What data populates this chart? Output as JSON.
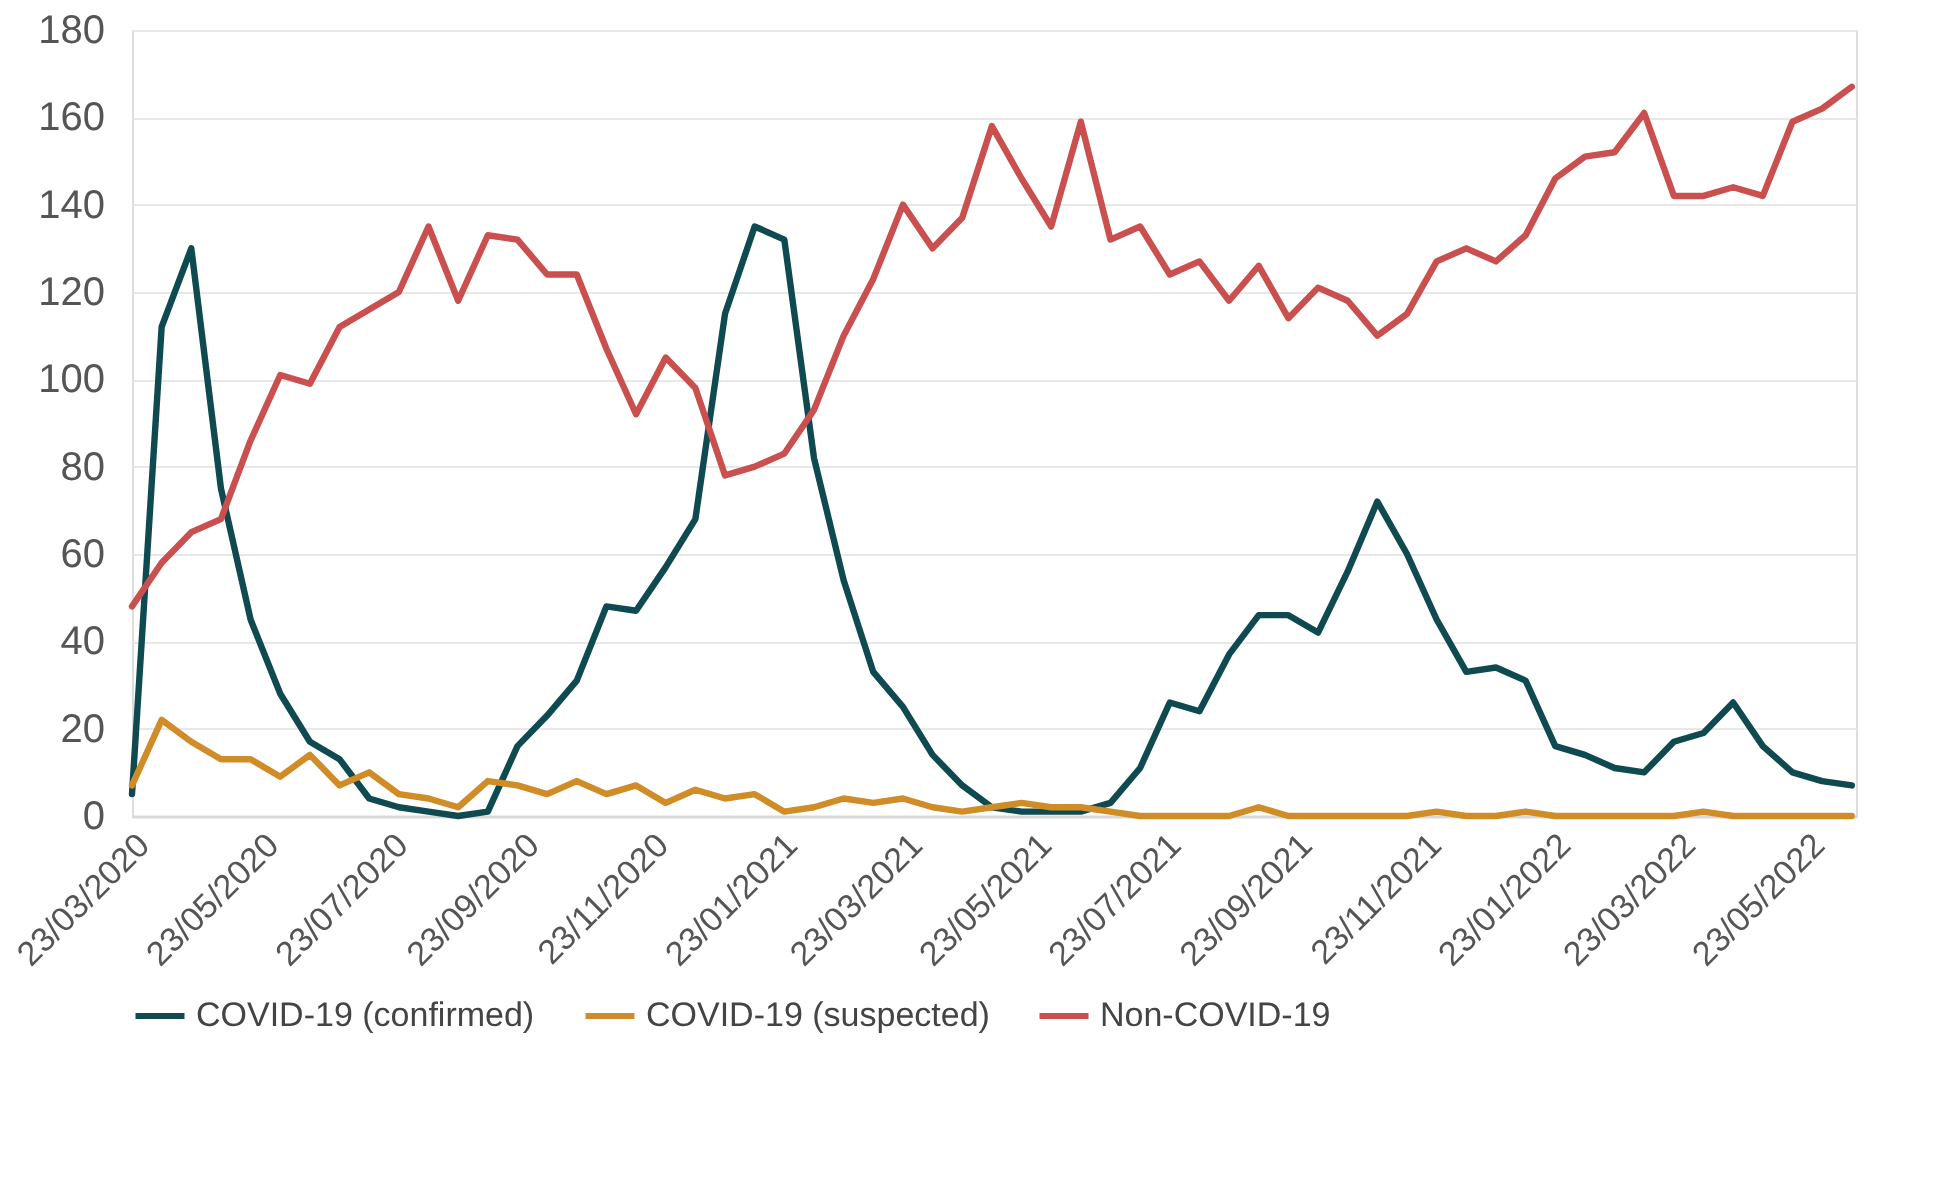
{
  "chart_data": {
    "type": "line",
    "grid": "y",
    "legend": "bottom",
    "xlim": [
      "2020-03-23",
      "2022-06-15"
    ],
    "xticks": [
      {
        "value": "2020-03-23",
        "label": "23/03/2020"
      },
      {
        "value": "2020-05-23",
        "label": "23/05/2020"
      },
      {
        "value": "2020-07-23",
        "label": "23/07/2020"
      },
      {
        "value": "2020-09-23",
        "label": "23/09/2020"
      },
      {
        "value": "2020-11-23",
        "label": "23/11/2020"
      },
      {
        "value": "2021-01-23",
        "label": "23/01/2021"
      },
      {
        "value": "2021-03-23",
        "label": "23/03/2021"
      },
      {
        "value": "2021-05-23",
        "label": "23/05/2021"
      },
      {
        "value": "2021-07-23",
        "label": "23/07/2021"
      },
      {
        "value": "2021-09-23",
        "label": "23/09/2021"
      },
      {
        "value": "2021-11-23",
        "label": "23/11/2021"
      },
      {
        "value": "2022-01-23",
        "label": "23/01/2022"
      },
      {
        "value": "2022-03-23",
        "label": "23/03/2022"
      },
      {
        "value": "2022-05-23",
        "label": "23/05/2022"
      }
    ],
    "ylim": [
      0,
      180
    ],
    "yticks": [
      0,
      20,
      40,
      60,
      80,
      100,
      120,
      140,
      160,
      180
    ],
    "x": [
      "2020-03-23",
      "2020-04-06",
      "2020-04-20",
      "2020-05-04",
      "2020-05-18",
      "2020-06-01",
      "2020-06-15",
      "2020-06-29",
      "2020-07-13",
      "2020-07-27",
      "2020-08-10",
      "2020-08-24",
      "2020-09-07",
      "2020-09-21",
      "2020-10-05",
      "2020-10-19",
      "2020-11-02",
      "2020-11-16",
      "2020-11-30",
      "2020-12-14",
      "2020-12-28",
      "2021-01-11",
      "2021-01-25",
      "2021-02-08",
      "2021-02-22",
      "2021-03-08",
      "2021-03-22",
      "2021-04-05",
      "2021-04-19",
      "2021-05-03",
      "2021-05-17",
      "2021-05-31",
      "2021-06-14",
      "2021-06-28",
      "2021-07-12",
      "2021-07-26",
      "2021-08-09",
      "2021-08-23",
      "2021-09-06",
      "2021-09-20",
      "2021-10-04",
      "2021-10-18",
      "2021-11-01",
      "2021-11-15",
      "2021-11-29",
      "2021-12-13",
      "2021-12-27",
      "2022-01-10",
      "2022-01-24",
      "2022-02-07",
      "2022-02-21",
      "2022-03-07",
      "2022-03-21",
      "2022-04-04",
      "2022-04-18",
      "2022-05-02",
      "2022-05-16",
      "2022-05-30",
      "2022-06-13"
    ],
    "series": [
      {
        "name": "COVID-19 (confirmed)",
        "color": "#0e4a50",
        "values": [
          5,
          112,
          130,
          75,
          45,
          28,
          17,
          13,
          4,
          2,
          1,
          0,
          1,
          16,
          23,
          31,
          48,
          47,
          57,
          68,
          115,
          135,
          132,
          82,
          54,
          33,
          25,
          14,
          7,
          2,
          1,
          1,
          1,
          3,
          11,
          26,
          24,
          37,
          46,
          46,
          42,
          56,
          72,
          60,
          45,
          33,
          34,
          31,
          16,
          14,
          11,
          10,
          17,
          19,
          26,
          16,
          10,
          8,
          7
        ]
      },
      {
        "name": "COVID-19 (suspected)",
        "color": "#d08c27",
        "values": [
          7,
          22,
          17,
          13,
          13,
          9,
          14,
          7,
          10,
          5,
          4,
          2,
          8,
          7,
          5,
          8,
          5,
          7,
          3,
          6,
          4,
          5,
          1,
          2,
          4,
          3,
          4,
          2,
          1,
          2,
          3,
          2,
          2,
          1,
          0,
          0,
          0,
          0,
          2,
          0,
          0,
          0,
          0,
          0,
          1,
          0,
          0,
          1,
          0,
          0,
          0,
          0,
          0,
          1,
          0,
          0,
          0,
          0,
          0
        ]
      },
      {
        "name": "Non-COVID-19",
        "color": "#c9504f",
        "values": [
          48,
          58,
          65,
          68,
          86,
          101,
          99,
          112,
          116,
          120,
          135,
          118,
          133,
          132,
          124,
          124,
          107,
          92,
          105,
          98,
          78,
          80,
          83,
          93,
          110,
          123,
          140,
          130,
          137,
          158,
          146,
          135,
          159,
          132,
          135,
          124,
          127,
          118,
          126,
          114,
          121,
          118,
          110,
          115,
          127,
          130,
          127,
          133,
          146,
          151,
          152,
          161,
          142,
          142,
          144,
          142,
          159,
          162,
          167
        ]
      }
    ]
  }
}
